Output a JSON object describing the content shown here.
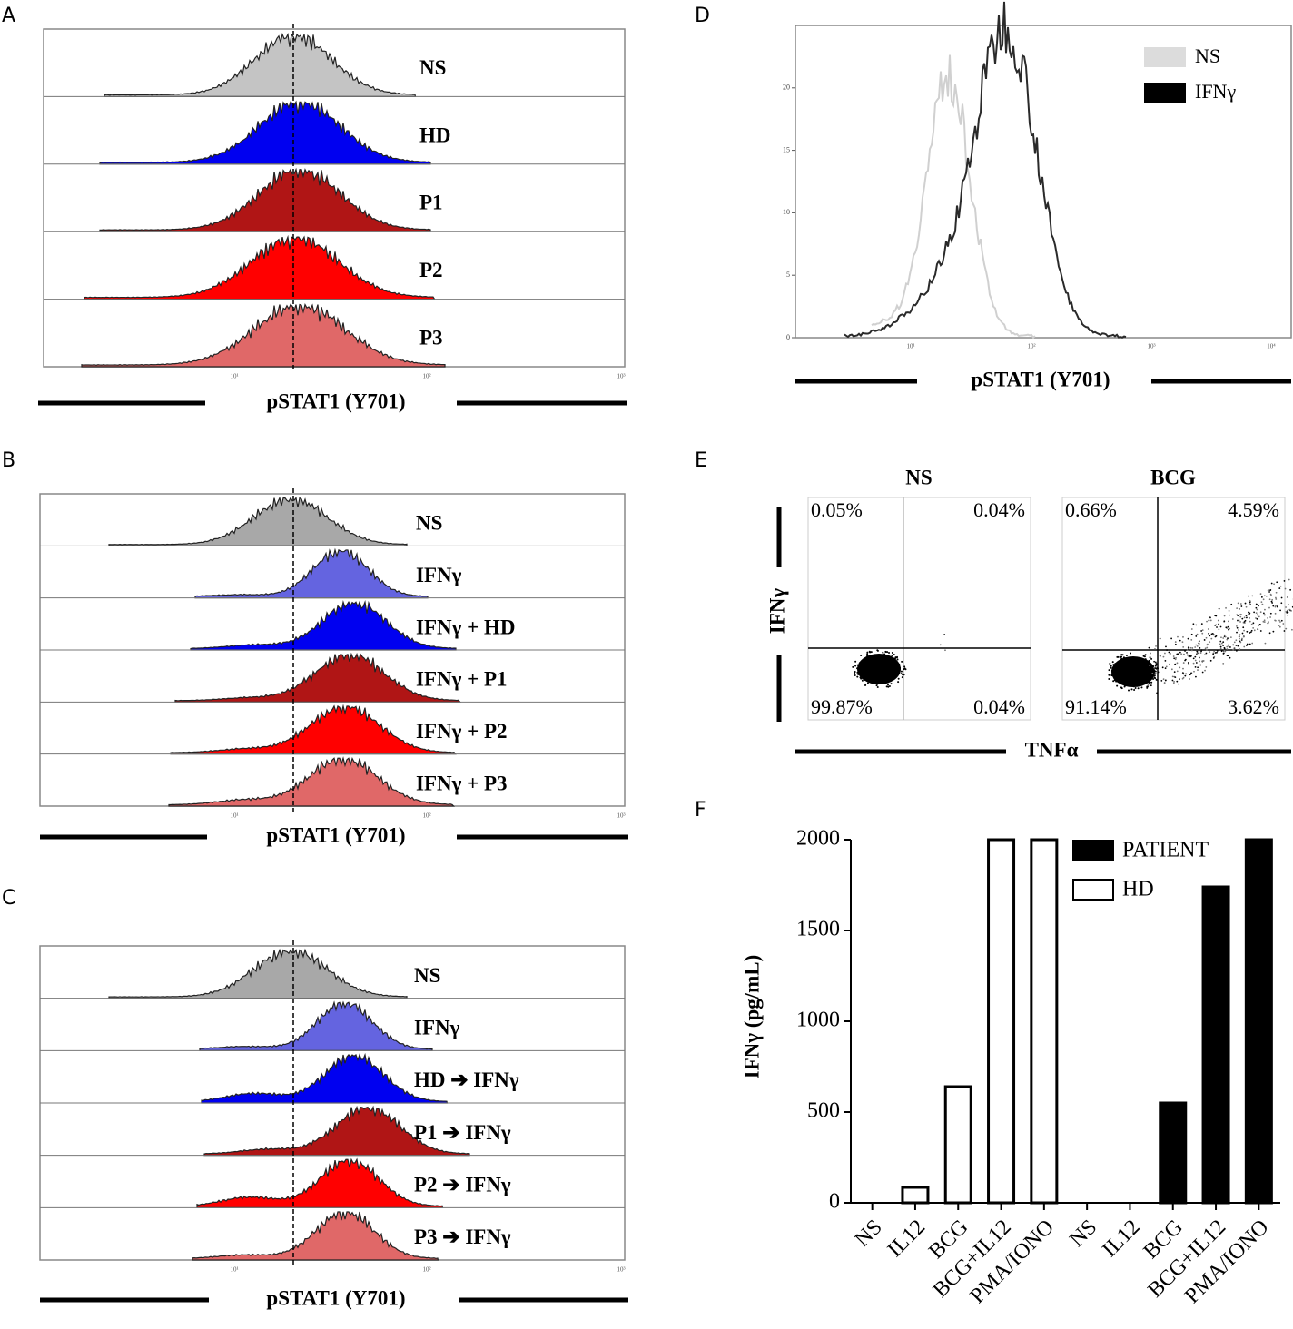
{
  "figure": {
    "panel_labels": [
      "A",
      "B",
      "C",
      "D",
      "E",
      "F"
    ],
    "A": {
      "rows": [
        "NS",
        "HD",
        "P1",
        "P2",
        "P3"
      ],
      "colors": [
        "#c4c4c4",
        "#0000f0",
        "#b01515",
        "#ff0000",
        "#e06868"
      ],
      "xlabel": "pSTAT1 (Y701)",
      "xtick_labels": [
        "10¹",
        "10²",
        "10³"
      ]
    },
    "B": {
      "rows": [
        "NS",
        "IFNγ",
        "IFNγ  + HD",
        "IFNγ  + P1",
        "IFNγ  + P2",
        "IFNγ  + P3"
      ],
      "colors": [
        "#a8a8a8",
        "#6464e0",
        "#0000f0",
        "#b01515",
        "#ff0000",
        "#e06868"
      ],
      "xlabel": "pSTAT1 (Y701)",
      "xtick_labels": [
        "10¹",
        "10²",
        "10³"
      ]
    },
    "C": {
      "rows": [
        "NS",
        "IFNγ",
        "HD ➔ IFNγ",
        "P1 ➔ IFNγ",
        "P2 ➔ IFNγ",
        "P3 ➔ IFNγ"
      ],
      "colors": [
        "#a8a8a8",
        "#6464e0",
        "#0000f0",
        "#b01515",
        "#ff0000",
        "#e06868"
      ],
      "xlabel": "pSTAT1 (Y701)",
      "xtick_labels": [
        "10¹",
        "10²",
        "10³"
      ]
    },
    "D": {
      "legend": [
        {
          "name": "NS",
          "color": "#dcdcdc"
        },
        {
          "name": "IFNγ",
          "color": "#000000"
        }
      ],
      "xlabel": "pSTAT1 (Y701)",
      "ylim": [
        0,
        25
      ],
      "yticks": [
        0,
        5,
        10,
        15,
        20
      ],
      "xtick_labels": [
        "10¹",
        "10²",
        "10³",
        "10⁴"
      ]
    },
    "E": {
      "ylabel": "IFNγ",
      "xlabel": "TNFα",
      "plots": [
        {
          "title": "NS",
          "quadrants": [
            "0.05%",
            "0.04%",
            "99.87%",
            "0.04%"
          ]
        },
        {
          "title": "BCG",
          "quadrants": [
            "0.66%",
            "4.59%",
            "91.14%",
            "3.62%"
          ]
        }
      ]
    }
  },
  "chart_data": {
    "type": "bar",
    "ylabel": "IFNγ (pg/mL)",
    "categories": [
      "NS",
      "IL12",
      "BCG",
      "BCG+IL12",
      "PMA/IONO",
      "NS",
      "IL12",
      "BCG",
      "BCG+IL12",
      "PMA/IONO"
    ],
    "series": [
      {
        "name": "PATIENT",
        "color": "#000000",
        "values": [
          null,
          null,
          null,
          null,
          null,
          0,
          0,
          550,
          1740,
          2000
        ]
      },
      {
        "name": "HD",
        "color": "#ffffff",
        "values": [
          0,
          85,
          640,
          2000,
          2000,
          null,
          null,
          null,
          null,
          null
        ]
      }
    ],
    "ylim": [
      0,
      2000
    ],
    "yticks": [
      0,
      500,
      1000,
      1500,
      2000
    ],
    "legend": "top-right"
  }
}
